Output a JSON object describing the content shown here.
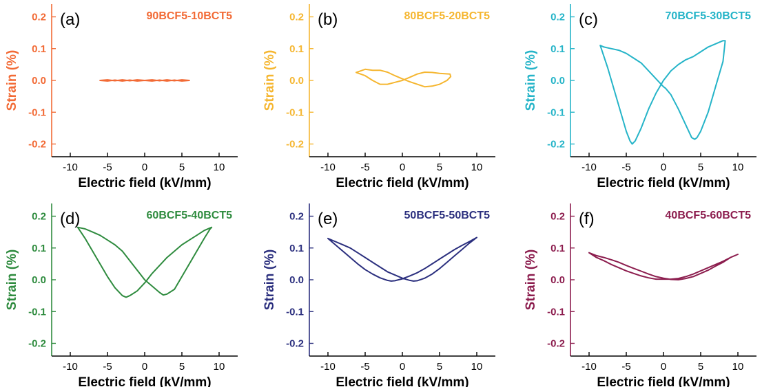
{
  "chart_data": [
    {
      "type": "line",
      "panel_label": "(a)",
      "title": "90BCF5-10BCT5",
      "color": "#f26a35",
      "xlabel": "Electric field (kV/mm)",
      "ylabel": "Strain (%)",
      "xlim": [
        -12.5,
        12.5
      ],
      "ylim": [
        -0.24,
        0.24
      ],
      "xticks": [
        -10,
        -5,
        0,
        5,
        10
      ],
      "yticks": [
        -0.2,
        -0.1,
        0.0,
        0.1,
        0.2
      ],
      "xtick_labels": [
        "-10",
        "-5",
        "0",
        "5",
        "10"
      ],
      "ytick_labels": [
        "-0.2",
        "-0.1",
        "0.0",
        "0.1",
        "0.2"
      ],
      "series": [
        {
          "x": [
            -6,
            -5,
            -4,
            -3,
            -2,
            -1,
            0,
            1,
            2,
            3,
            4,
            5,
            6,
            5,
            4,
            3,
            2,
            1,
            0,
            -1,
            -2,
            -3,
            -4,
            -5,
            -6
          ],
          "y": [
            0.0,
            0.002,
            -0.001,
            0.002,
            -0.001,
            0.002,
            0.0,
            0.002,
            -0.001,
            0.002,
            -0.001,
            0.002,
            0.0,
            -0.002,
            0.001,
            -0.002,
            0.001,
            -0.002,
            0.0,
            -0.002,
            0.001,
            -0.002,
            0.001,
            -0.002,
            0.0
          ]
        }
      ]
    },
    {
      "type": "line",
      "panel_label": "(b)",
      "title": "80BCF5-20BCT5",
      "color": "#f5b630",
      "xlabel": "Electric field (kV/mm)",
      "ylabel": "Strain (%)",
      "xlim": [
        -12.5,
        12.5
      ],
      "ylim": [
        -0.24,
        0.24
      ],
      "xticks": [
        -10,
        -5,
        0,
        5,
        10
      ],
      "yticks": [
        -0.2,
        -0.1,
        0.0,
        0.1,
        0.2
      ],
      "xtick_labels": [
        "-10",
        "-5",
        "0",
        "5",
        "10"
      ],
      "ytick_labels": [
        "-0.2",
        "-0.1",
        "0.0",
        "0.1",
        "0.2"
      ],
      "series": [
        {
          "x": [
            -6.2,
            -5,
            -4,
            -3,
            -2,
            -1,
            0,
            1,
            2,
            3,
            4,
            5,
            6.4,
            6.5,
            6,
            5,
            4,
            3,
            2,
            1,
            0,
            -1,
            -2,
            -3,
            -4,
            -5,
            -6.2
          ],
          "y": [
            0.025,
            0.015,
            0.0,
            -0.012,
            -0.012,
            -0.006,
            0.0,
            0.01,
            0.02,
            0.026,
            0.025,
            0.022,
            0.02,
            0.012,
            0.0,
            -0.012,
            -0.018,
            -0.02,
            -0.012,
            -0.004,
            0.005,
            0.015,
            0.026,
            0.032,
            0.032,
            0.035,
            0.025
          ]
        }
      ]
    },
    {
      "type": "line",
      "panel_label": "(c)",
      "title": "70BCF5-30BCT5",
      "color": "#25b4c8",
      "xlabel": "Electric field (kV/mm)",
      "ylabel": "Strain (%)",
      "xlim": [
        -12.5,
        12.5
      ],
      "ylim": [
        -0.24,
        0.24
      ],
      "xticks": [
        -10,
        -5,
        0,
        5,
        10
      ],
      "yticks": [
        -0.2,
        -0.1,
        0.0,
        0.1,
        0.2
      ],
      "xtick_labels": [
        "-10",
        "-5",
        "0",
        "5",
        "10"
      ],
      "ytick_labels": [
        "-0.2",
        "-0.1",
        "0.0",
        "0.1",
        "0.2"
      ],
      "series": [
        {
          "x": [
            -8.5,
            -7.5,
            -6.5,
            -5.5,
            -5,
            -4.5,
            -4.2,
            -3.8,
            -3,
            -2,
            -1,
            0,
            1,
            2,
            3,
            4,
            5,
            6,
            7,
            8,
            8.3,
            8,
            7,
            6,
            5,
            4.5,
            4.2,
            3.8,
            3,
            2,
            1,
            0.3,
            0,
            -1,
            -2,
            -3,
            -4,
            -5,
            -6,
            -7,
            -8,
            -8.5
          ],
          "y": [
            0.11,
            0.04,
            -0.04,
            -0.12,
            -0.16,
            -0.19,
            -0.2,
            -0.19,
            -0.15,
            -0.09,
            -0.04,
            0.0,
            0.03,
            0.05,
            0.065,
            0.075,
            0.09,
            0.105,
            0.115,
            0.125,
            0.125,
            0.06,
            -0.02,
            -0.1,
            -0.16,
            -0.18,
            -0.185,
            -0.18,
            -0.14,
            -0.09,
            -0.045,
            -0.025,
            -0.02,
            0.005,
            0.03,
            0.055,
            0.07,
            0.085,
            0.095,
            0.1,
            0.105,
            0.11
          ]
        }
      ]
    },
    {
      "type": "line",
      "panel_label": "(d)",
      "title": "60BCF5-40BCT5",
      "color": "#2e8b3e",
      "xlabel": "Electric field (kV/mm)",
      "ylabel": "Strain (%)",
      "xlim": [
        -12.5,
        12.5
      ],
      "ylim": [
        -0.24,
        0.24
      ],
      "xticks": [
        -10,
        -5,
        0,
        5,
        10
      ],
      "yticks": [
        -0.2,
        -0.1,
        0.0,
        0.1,
        0.2
      ],
      "xtick_labels": [
        "-10",
        "-5",
        "0",
        "5",
        "10"
      ],
      "ytick_labels": [
        "-0.2",
        "-0.1",
        "0.0",
        "0.1",
        "0.2"
      ],
      "series": [
        {
          "x": [
            -9,
            -8,
            -7,
            -6,
            -5,
            -4,
            -3,
            -2.5,
            -2,
            -1,
            0,
            1,
            2,
            3,
            4,
            5,
            6,
            7,
            8,
            9,
            8.8,
            8,
            7,
            6,
            5,
            4,
            3,
            2.5,
            2,
            1,
            0,
            -1,
            -2,
            -3,
            -4,
            -5,
            -6,
            -7,
            -8,
            -9
          ],
          "y": [
            0.165,
            0.13,
            0.09,
            0.05,
            0.01,
            -0.025,
            -0.05,
            -0.055,
            -0.05,
            -0.035,
            -0.01,
            0.02,
            0.045,
            0.07,
            0.09,
            0.11,
            0.125,
            0.14,
            0.155,
            0.165,
            0.16,
            0.13,
            0.09,
            0.05,
            0.01,
            -0.03,
            -0.045,
            -0.048,
            -0.04,
            -0.02,
            0.0,
            0.03,
            0.06,
            0.09,
            0.11,
            0.125,
            0.14,
            0.15,
            0.16,
            0.165
          ]
        }
      ]
    },
    {
      "type": "line",
      "panel_label": "(e)",
      "title": "50BCF5-50BCT5",
      "color": "#2b2f7e",
      "xlabel": "Electric field (kV/mm)",
      "ylabel": "Strain (%)",
      "xlim": [
        -12.5,
        12.5
      ],
      "ylim": [
        -0.24,
        0.24
      ],
      "xticks": [
        -10,
        -5,
        0,
        5,
        10
      ],
      "yticks": [
        -0.2,
        -0.1,
        0.0,
        0.1,
        0.2
      ],
      "xtick_labels": [
        "-10",
        "-5",
        "0",
        "5",
        "10"
      ],
      "ytick_labels": [
        "-0.2",
        "-0.1",
        "0.0",
        "0.1",
        "0.2"
      ],
      "series": [
        {
          "x": [
            -10,
            -9,
            -8,
            -7,
            -6,
            -5,
            -4,
            -3,
            -2,
            -1.5,
            -1,
            0,
            1,
            2,
            3,
            4,
            5,
            6,
            7,
            8,
            9,
            10,
            9,
            8,
            7,
            6,
            5,
            4,
            3,
            2,
            1.5,
            1,
            0,
            -1,
            -2,
            -3,
            -4,
            -5,
            -6,
            -7,
            -8,
            -9,
            -10
          ],
          "y": [
            0.13,
            0.11,
            0.09,
            0.07,
            0.05,
            0.032,
            0.018,
            0.006,
            -0.002,
            -0.004,
            -0.003,
            0.003,
            0.012,
            0.022,
            0.035,
            0.05,
            0.065,
            0.08,
            0.095,
            0.108,
            0.12,
            0.133,
            0.115,
            0.095,
            0.075,
            0.055,
            0.035,
            0.018,
            0.005,
            -0.003,
            -0.004,
            -0.002,
            0.005,
            0.015,
            0.025,
            0.04,
            0.055,
            0.07,
            0.085,
            0.1,
            0.11,
            0.12,
            0.13
          ]
        }
      ]
    },
    {
      "type": "line",
      "panel_label": "(f)",
      "title": "40BCF5-60BCT5",
      "color": "#8c1d4e",
      "xlabel": "Electric field (kV/mm)",
      "ylabel": "Strain (%)",
      "xlim": [
        -12.5,
        12.5
      ],
      "ylim": [
        -0.24,
        0.24
      ],
      "xticks": [
        -10,
        -5,
        0,
        5,
        10
      ],
      "yticks": [
        -0.2,
        -0.1,
        0.0,
        0.1,
        0.2
      ],
      "xtick_labels": [
        "-10",
        "-5",
        "0",
        "5",
        "10"
      ],
      "ytick_labels": [
        "-0.2",
        "-0.1",
        "0.0",
        "0.1",
        "0.2"
      ],
      "series": [
        {
          "x": [
            -10,
            -9,
            -8,
            -7,
            -6,
            -5,
            -4,
            -3,
            -2,
            -1,
            0,
            1,
            2,
            3,
            4,
            5,
            6,
            7,
            8,
            9,
            10,
            9,
            8,
            7,
            6,
            5,
            4,
            3,
            2,
            1,
            0,
            -1,
            -2,
            -3,
            -4,
            -5,
            -6,
            -7,
            -8,
            -9,
            -10
          ],
          "y": [
            0.085,
            0.07,
            0.06,
            0.048,
            0.038,
            0.028,
            0.02,
            0.012,
            0.006,
            0.002,
            0.002,
            0.002,
            0.004,
            0.01,
            0.018,
            0.028,
            0.038,
            0.048,
            0.058,
            0.07,
            0.08,
            0.07,
            0.055,
            0.043,
            0.03,
            0.02,
            0.01,
            0.004,
            0.0,
            0.001,
            0.005,
            0.01,
            0.018,
            0.027,
            0.036,
            0.045,
            0.055,
            0.063,
            0.07,
            0.076,
            0.085
          ]
        }
      ]
    }
  ]
}
